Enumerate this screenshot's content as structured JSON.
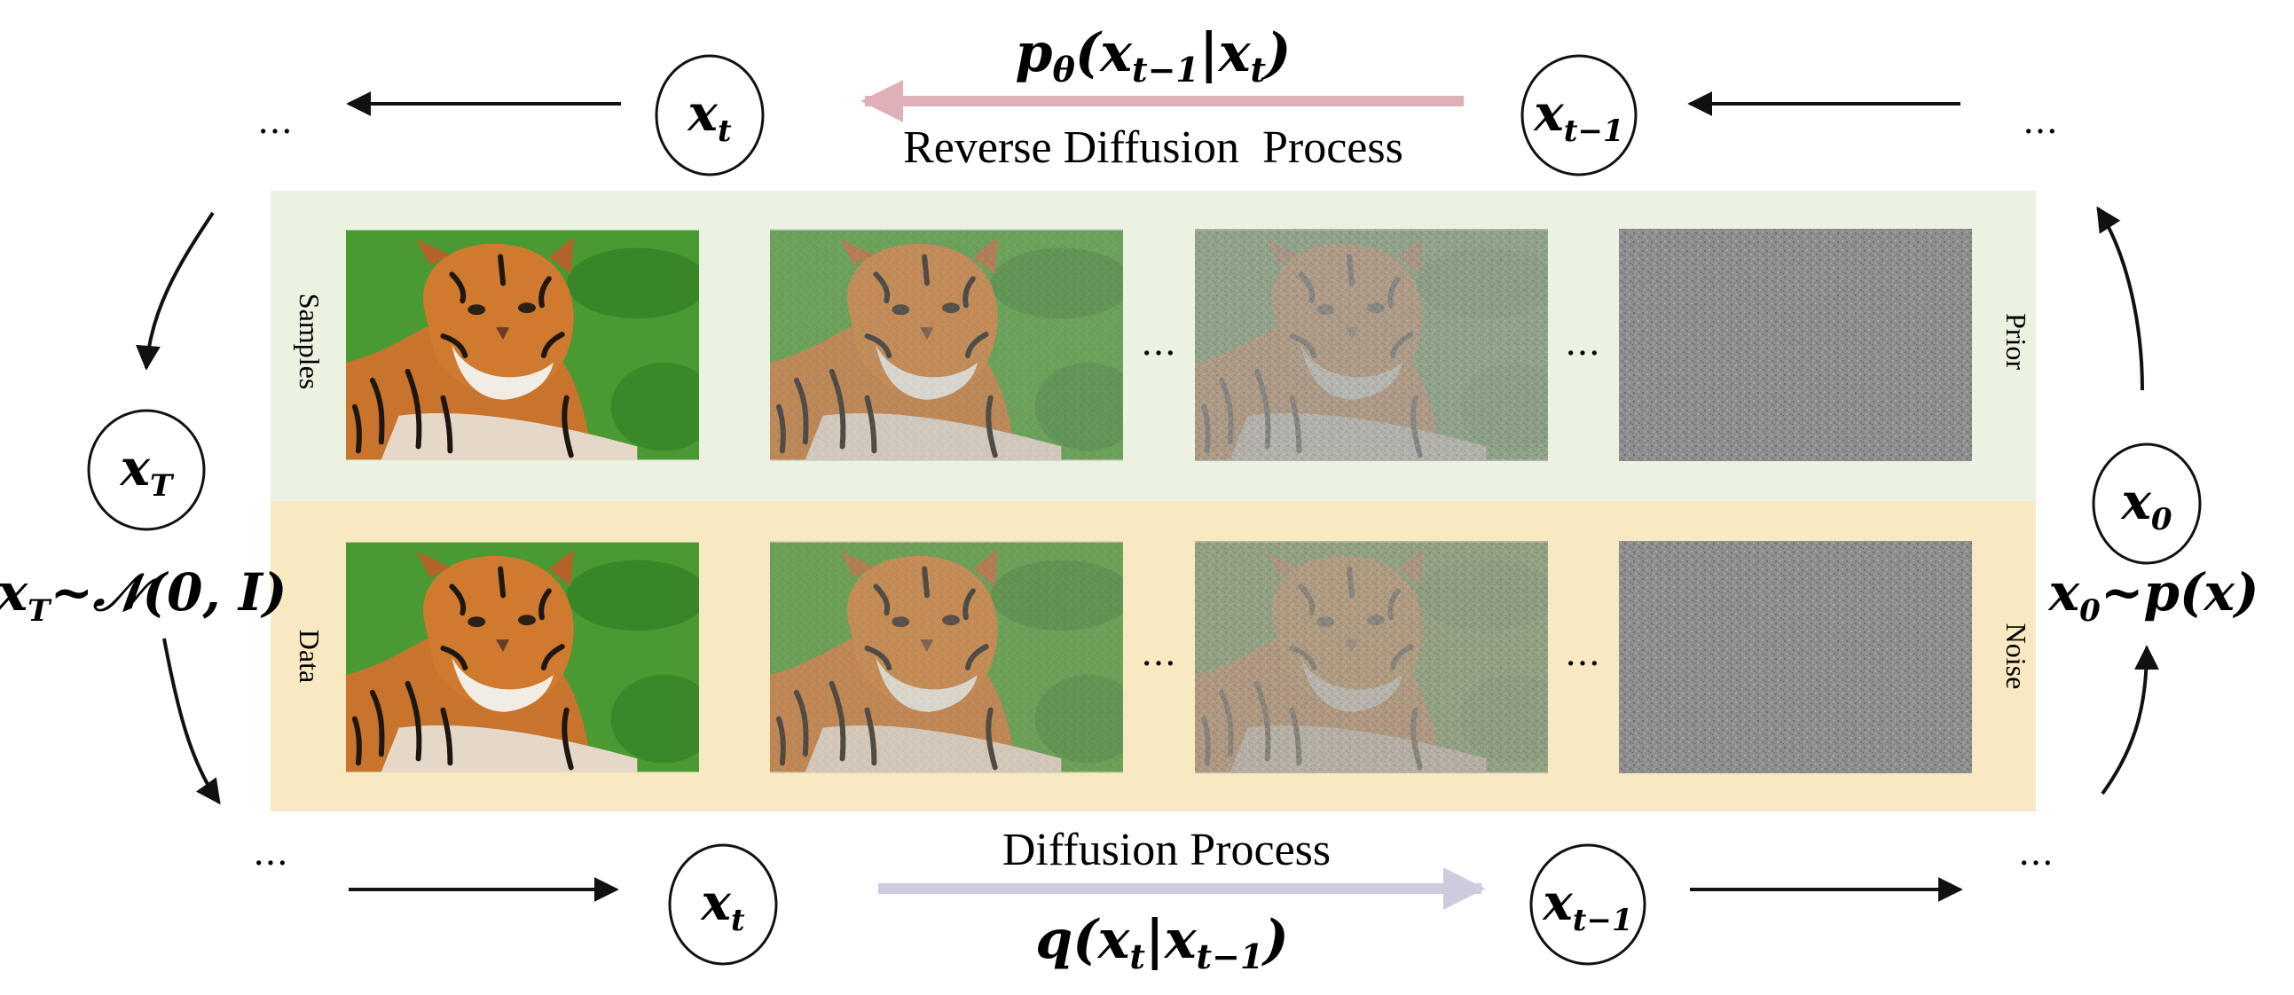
{
  "diagram": {
    "reverse_formula": {
      "p": "p",
      "theta": "θ",
      "x1": "x",
      "sub1": "t−1",
      "bar": "|",
      "x2": "x",
      "sub2": "t"
    },
    "reverse_label": "Reverse Diffusion  Process",
    "forward_label": "Diffusion Process",
    "forward_formula": {
      "q": "q",
      "x1": "x",
      "sub1": "t",
      "bar": "|",
      "x2": "x",
      "sub2": "t−1"
    },
    "nodes": {
      "top_xt": {
        "base": "x",
        "sub": "t"
      },
      "top_xt1": {
        "base": "x",
        "sub": "t−1"
      },
      "left_xT": {
        "base": "x",
        "sub": "T"
      },
      "right_x0": {
        "base": "x",
        "sub": "0"
      },
      "bottom_xt": {
        "base": "x",
        "sub": "t"
      },
      "bottom_xt1": {
        "base": "x",
        "sub": "t−1"
      }
    },
    "prior_formula": {
      "x": "x",
      "sub": "T",
      "rest": "~𝒩(0, I)"
    },
    "data_formula": {
      "x": "x",
      "sub": "0",
      "rest": "~p(x)"
    },
    "ellipsis": "…",
    "rows": {
      "samples_label": "Samples",
      "prior_label": "Prior",
      "data_label": "Data",
      "noise_label": "Noise"
    },
    "image_subject": "tiger",
    "colors": {
      "samples_band": "#ecf2e2",
      "data_band": "#f8e9c3",
      "reverse_arrow": "#e0b0b8",
      "forward_arrow": "#ccccde"
    }
  }
}
